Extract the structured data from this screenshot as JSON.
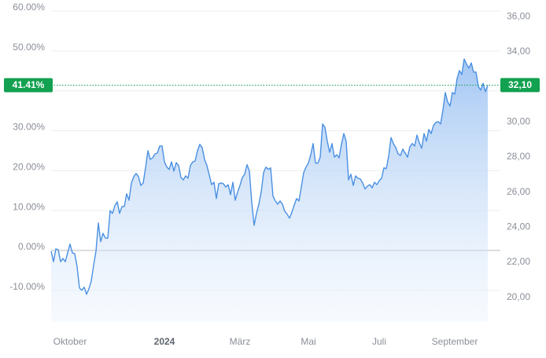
{
  "chart_data": {
    "type": "area",
    "values": [
      -0.2,
      -2.8,
      0.4,
      0.2,
      -2.8,
      -2.0,
      -2.8,
      -0.6,
      1.6,
      -0.6,
      -0.8,
      -4.1,
      -9.4,
      -10.0,
      -9.2,
      -11.0,
      -9.6,
      -7.7,
      -3.7,
      -0.2,
      6.9,
      2.2,
      4.3,
      3.1,
      3.1,
      10.0,
      9.3,
      11.2,
      12.2,
      9.3,
      11.0,
      11.0,
      14.2,
      12.6,
      16.9,
      18.5,
      19.3,
      18.5,
      16.3,
      16.9,
      20.7,
      25.0,
      22.8,
      23.2,
      24.2,
      24.4,
      26.2,
      26.2,
      22.2,
      20.9,
      20.3,
      22.2,
      19.9,
      22.0,
      21.3,
      18.3,
      17.7,
      18.7,
      18.1,
      21.3,
      22.2,
      22.4,
      25.0,
      26.6,
      25.8,
      22.8,
      21.3,
      18.9,
      16.5,
      17.1,
      13.0,
      16.7,
      16.9,
      16.7,
      15.9,
      16.5,
      14.0,
      17.1,
      12.6,
      14.6,
      16.3,
      18.3,
      19.1,
      21.5,
      19.9,
      12.0,
      6.3,
      9.3,
      11.6,
      14.6,
      19.5,
      20.9,
      20.3,
      20.7,
      13.6,
      12.4,
      11.6,
      12.4,
      11.6,
      9.8,
      9.1,
      8.1,
      9.6,
      11.4,
      13.0,
      12.4,
      15.9,
      19.5,
      20.9,
      21.9,
      24.0,
      26.8,
      21.9,
      21.9,
      23.4,
      31.7,
      30.9,
      27.4,
      24.6,
      26.8,
      23.4,
      24.0,
      23.2,
      26.6,
      29.3,
      27.4,
      17.7,
      19.1,
      16.3,
      18.7,
      18.1,
      17.9,
      16.9,
      15.4,
      16.1,
      16.5,
      15.7,
      17.1,
      16.5,
      17.5,
      18.1,
      20.7,
      20.5,
      23.6,
      28.3,
      26.8,
      25.8,
      24.2,
      23.8,
      25.4,
      24.4,
      23.4,
      26.0,
      26.8,
      26.2,
      28.9,
      27.0,
      25.6,
      29.3,
      27.4,
      30.3,
      29.3,
      31.3,
      32.1,
      32.3,
      31.7,
      35.2,
      39.6,
      37.2,
      36.2,
      39.6,
      39.2,
      43.1,
      45.1,
      44.1,
      48.0,
      46.7,
      45.7,
      47.0,
      44.7,
      44.7,
      41.1,
      40.2,
      41.9,
      39.8,
      41.41
    ],
    "color": "#4a90e2",
    "xlim": [
      0,
      185
    ],
    "xticks": [
      {
        "value": 8,
        "label": "Oktober"
      },
      {
        "value": 48,
        "label": "2024",
        "bold": true
      },
      {
        "value": 80,
        "label": "März"
      },
      {
        "value": 109,
        "label": "Mai"
      },
      {
        "value": 139,
        "label": "Juli"
      },
      {
        "value": 171,
        "label": "September"
      }
    ],
    "ylim": [
      -17.9,
      60.8
    ],
    "yticks": [
      {
        "value": -10,
        "label": "-10.00%"
      },
      {
        "value": 0,
        "label": "0.00%"
      },
      {
        "value": 10,
        "label": "10.00%"
      },
      {
        "value": 20,
        "label": "20.00%"
      },
      {
        "value": 30,
        "label": "30.00%"
      },
      {
        "value": 40,
        "label": "40.00%"
      },
      {
        "value": 50,
        "label": "50.00%"
      },
      {
        "value": 60,
        "label": "60.00%"
      }
    ],
    "y2lim": [
      18.6,
      36.5
    ],
    "y2ticks": [
      {
        "value": 20,
        "label": "20,00"
      },
      {
        "value": 22,
        "label": "22,00"
      },
      {
        "value": 24,
        "label": "24,00"
      },
      {
        "value": 26,
        "label": "26,00"
      },
      {
        "value": 28,
        "label": "28,00"
      },
      {
        "value": 30,
        "label": "30,00"
      },
      {
        "value": 32,
        "label": "32,00"
      },
      {
        "value": 34,
        "label": "34,00"
      },
      {
        "value": 36,
        "label": "36,00"
      }
    ],
    "grid": true,
    "last_percent": {
      "value": 41.41,
      "label": "41.41%"
    },
    "last_price": {
      "value": 32.1,
      "label": "32,10"
    },
    "badge_color": "#12a150"
  }
}
